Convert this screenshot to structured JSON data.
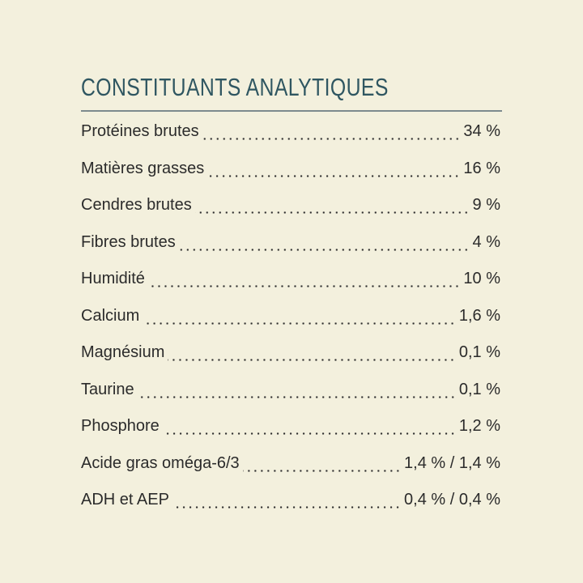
{
  "header": {
    "title": "CONSTITUANTS ANALYTIQUES"
  },
  "table": {
    "rows": [
      [
        "Protéines brutes",
        "34 %"
      ],
      [
        "Matières grasses",
        "16 %"
      ],
      [
        "Cendres brutes",
        "9 %"
      ],
      [
        "Fibres brutes",
        "4 %"
      ],
      [
        "Humidité",
        "10 %"
      ],
      [
        "Calcium",
        "1,6 %"
      ],
      [
        "Magnésium",
        "0,1 %"
      ],
      [
        "Taurine",
        "0,1 %"
      ],
      [
        "Phosphore",
        "1,2 %"
      ],
      [
        "Acide gras oméga-6/3",
        "1,4 % / 1,4 %"
      ],
      [
        "ADH et AEP",
        "0,4 % / 0,4 %"
      ]
    ]
  }
}
